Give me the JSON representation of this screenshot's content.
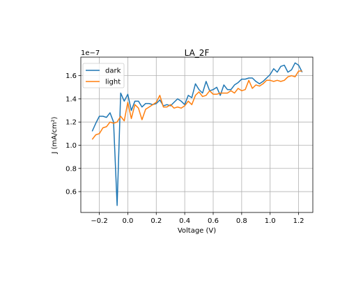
{
  "chart_data": {
    "type": "line",
    "title": "LA_2F",
    "xlabel": "Voltage (V)",
    "ylabel": "J (mA/cm²)",
    "y_scale_label": "1e−7",
    "xlim": [
      -0.33,
      1.3
    ],
    "ylim": [
      0.42,
      1.76
    ],
    "xticks": [
      -0.2,
      0.0,
      0.2,
      0.4,
      0.6,
      0.8,
      1.0,
      1.2
    ],
    "xtick_labels": [
      "−0.2",
      "0.0",
      "0.2",
      "0.4",
      "0.6",
      "0.8",
      "1.0",
      "1.2"
    ],
    "yticks": [
      0.6,
      0.8,
      1.0,
      1.2,
      1.4,
      1.6
    ],
    "ytick_labels": [
      "0.6",
      "0.8",
      "1.0",
      "1.2",
      "1.4",
      "1.6"
    ],
    "grid": true,
    "legend_position": "upper-left",
    "x": [
      -0.25,
      -0.225,
      -0.2,
      -0.175,
      -0.15,
      -0.125,
      -0.1,
      -0.075,
      -0.05,
      -0.025,
      0.0,
      0.025,
      0.05,
      0.075,
      0.1,
      0.125,
      0.15,
      0.175,
      0.2,
      0.225,
      0.25,
      0.275,
      0.3,
      0.325,
      0.35,
      0.375,
      0.4,
      0.425,
      0.45,
      0.475,
      0.5,
      0.525,
      0.55,
      0.575,
      0.6,
      0.625,
      0.65,
      0.675,
      0.7,
      0.725,
      0.75,
      0.775,
      0.8,
      0.825,
      0.85,
      0.875,
      0.9,
      0.925,
      0.95,
      0.975,
      1.0,
      1.025,
      1.05,
      1.075,
      1.1,
      1.125,
      1.15,
      1.175,
      1.2,
      1.225
    ],
    "series": [
      {
        "name": "dark",
        "color": "#1f77b4",
        "values": [
          1.12,
          1.19,
          1.25,
          1.25,
          1.24,
          1.28,
          1.2,
          0.48,
          1.45,
          1.38,
          1.44,
          1.3,
          1.38,
          1.38,
          1.33,
          1.36,
          1.36,
          1.35,
          1.36,
          1.39,
          1.34,
          1.35,
          1.34,
          1.37,
          1.4,
          1.38,
          1.35,
          1.43,
          1.41,
          1.53,
          1.48,
          1.45,
          1.55,
          1.47,
          1.48,
          1.5,
          1.43,
          1.52,
          1.48,
          1.48,
          1.52,
          1.54,
          1.57,
          1.57,
          1.58,
          1.58,
          1.55,
          1.53,
          1.55,
          1.58,
          1.61,
          1.66,
          1.63,
          1.68,
          1.69,
          1.63,
          1.65,
          1.71,
          1.69,
          1.63
        ]
      },
      {
        "name": "light",
        "color": "#ff7f0e",
        "values": [
          1.05,
          1.09,
          1.1,
          1.15,
          1.16,
          1.2,
          1.19,
          1.2,
          1.25,
          1.21,
          1.37,
          1.23,
          1.35,
          1.32,
          1.22,
          1.31,
          1.33,
          1.35,
          1.37,
          1.43,
          1.33,
          1.33,
          1.35,
          1.32,
          1.33,
          1.32,
          1.34,
          1.38,
          1.35,
          1.43,
          1.46,
          1.42,
          1.43,
          1.47,
          1.44,
          1.44,
          1.45,
          1.45,
          1.45,
          1.47,
          1.45,
          1.49,
          1.47,
          1.48,
          1.56,
          1.49,
          1.52,
          1.51,
          1.53,
          1.56,
          1.56,
          1.55,
          1.56,
          1.55,
          1.56,
          1.59,
          1.6,
          1.59,
          1.64,
          1.64
        ]
      }
    ]
  }
}
